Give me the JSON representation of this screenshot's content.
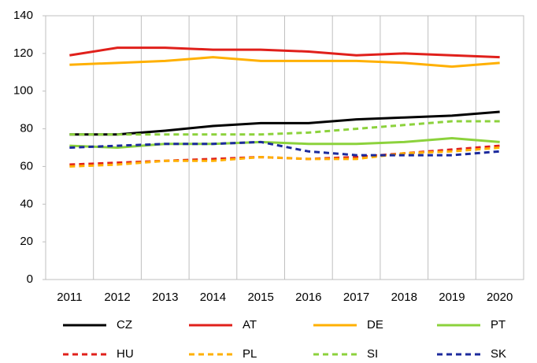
{
  "chart_data": {
    "type": "line",
    "categories": [
      "2011",
      "2012",
      "2013",
      "2014",
      "2015",
      "2016",
      "2017",
      "2018",
      "2019",
      "2020"
    ],
    "ylim": [
      0,
      140
    ],
    "yticks": [
      0,
      20,
      40,
      60,
      80,
      100,
      120,
      140
    ],
    "series": [
      {
        "name": "CZ",
        "color": "#000000",
        "style": "solid",
        "values": [
          77,
          77,
          79,
          81.5,
          83,
          83,
          85,
          86,
          87,
          89
        ]
      },
      {
        "name": "AT",
        "color": "#e0201b",
        "style": "solid",
        "values": [
          119,
          123,
          123,
          122,
          122,
          121,
          119,
          120,
          119,
          118
        ]
      },
      {
        "name": "DE",
        "color": "#ffb000",
        "style": "solid",
        "values": [
          114,
          115,
          116,
          118,
          116,
          116,
          116,
          115,
          113,
          115
        ]
      },
      {
        "name": "PT",
        "color": "#8cd23c",
        "style": "solid",
        "values": [
          71,
          70,
          72,
          72,
          73,
          72,
          72,
          73,
          75,
          73
        ]
      },
      {
        "name": "HU",
        "color": "#e0201b",
        "style": "dashed",
        "values": [
          61,
          62,
          63,
          64,
          65,
          64,
          65,
          67,
          69,
          71
        ]
      },
      {
        "name": "PL",
        "color": "#ffb000",
        "style": "dashed",
        "values": [
          60,
          61,
          63,
          63,
          65,
          64,
          64,
          67,
          68,
          70
        ]
      },
      {
        "name": "SI",
        "color": "#8cd23c",
        "style": "dashed",
        "values": [
          77,
          77,
          77,
          77,
          77,
          78,
          80,
          82,
          84,
          84
        ]
      },
      {
        "name": "SK",
        "color": "#1c2a9c",
        "style": "dashed",
        "values": [
          70,
          71,
          72,
          72,
          73,
          68,
          66,
          66,
          66,
          68
        ]
      }
    ]
  }
}
